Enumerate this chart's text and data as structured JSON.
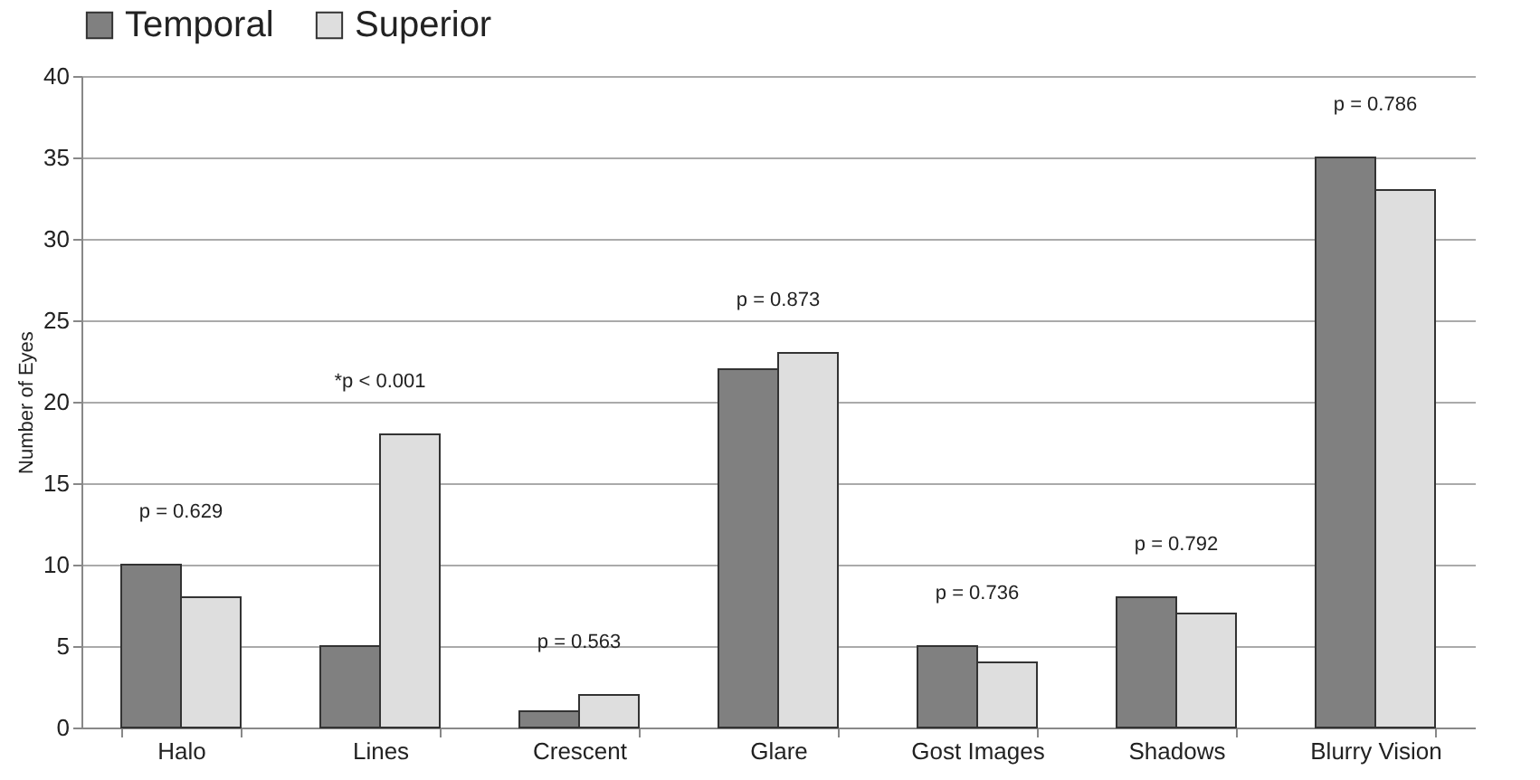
{
  "chart_data": {
    "type": "bar",
    "ylabel": "Number of Eyes",
    "categories": [
      "Halo",
      "Lines",
      "Crescent",
      "Glare",
      "Gost Images",
      "Shadows",
      "Blurry Vision"
    ],
    "series": [
      {
        "name": "Temporal",
        "color": "#808080",
        "values": [
          10,
          5,
          1,
          22,
          5,
          8,
          35
        ]
      },
      {
        "name": "Superior",
        "color": "#dedede",
        "values": [
          8,
          18,
          2,
          23,
          4,
          7,
          33
        ]
      }
    ],
    "ylim": [
      0,
      40
    ],
    "yticks": [
      0,
      5,
      10,
      15,
      20,
      25,
      30,
      35,
      40
    ],
    "grid": "y",
    "legend": "top",
    "annotations": [
      "p = 0.629",
      "*p < 0.001",
      "p = 0.563",
      "p = 0.873",
      "p = 0.736",
      "p =  0.792",
      "p = 0.786"
    ]
  }
}
